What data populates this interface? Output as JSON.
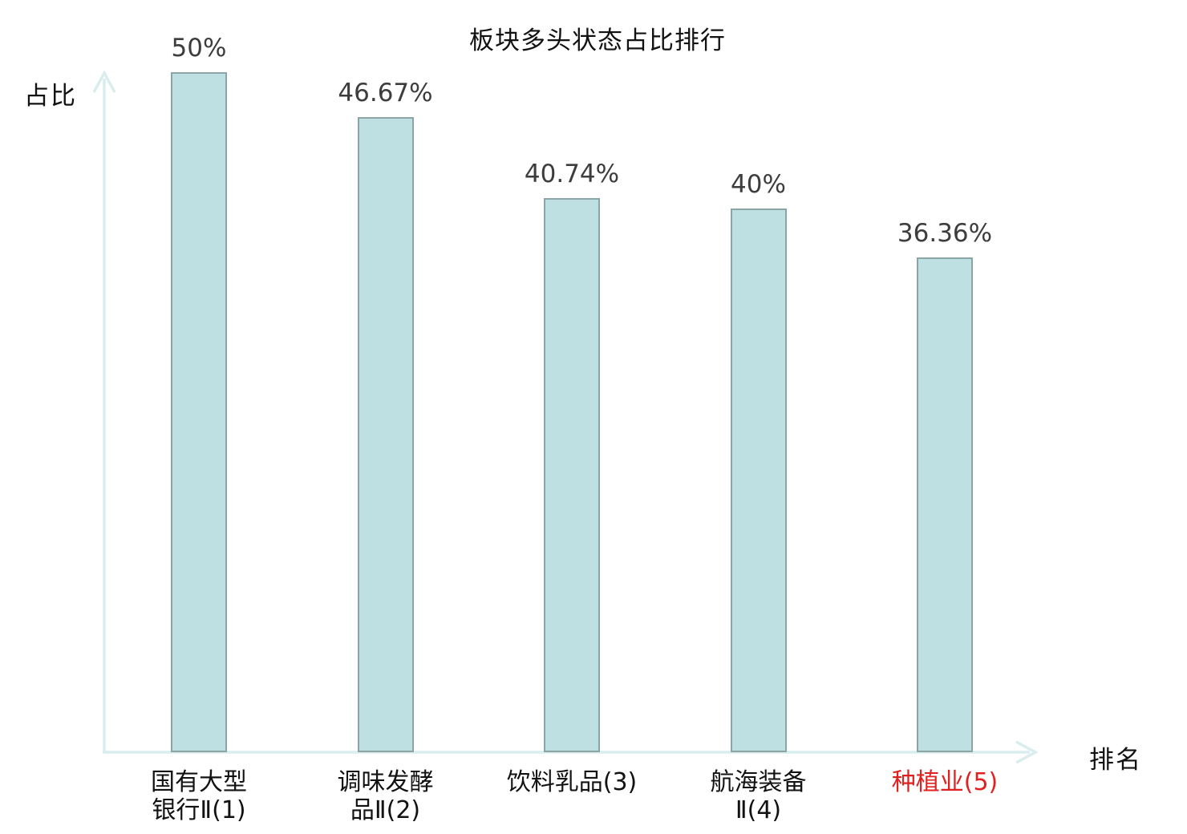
{
  "colors": {
    "bar_fill": "#bfe0e3",
    "bar_border": "#8ba4a6",
    "axis": "#d9edef",
    "value_text": "#3d3d3d",
    "label_text": "#121212",
    "highlight_text": "#e02120",
    "background": "#ffffff"
  },
  "chart_data": {
    "type": "bar",
    "title": "板块多头状态占比排行",
    "xlabel": "排名",
    "ylabel": "占比",
    "ylim": [
      0,
      50
    ],
    "grid": false,
    "legend": "none",
    "categories": [
      "国有大型银行Ⅱ(1)",
      "调味发酵品Ⅱ(2)",
      "饮料乳品(3)",
      "航海装备Ⅱ(4)",
      "种植业(5)"
    ],
    "category_lines": [
      [
        "国有大型",
        "银行Ⅱ(1)"
      ],
      [
        "调味发酵",
        "品Ⅱ(2)"
      ],
      [
        "饮料乳品(3)"
      ],
      [
        "航海装备",
        "Ⅱ(4)"
      ],
      [
        "种植业(5)"
      ]
    ],
    "values": [
      50,
      46.67,
      40.74,
      40,
      36.36
    ],
    "value_labels": [
      "50%",
      "46.67%",
      "40.74%",
      "40%",
      "36.36%"
    ],
    "highlighted_category_index": 4,
    "highlighted_category": "种植业(5)"
  }
}
